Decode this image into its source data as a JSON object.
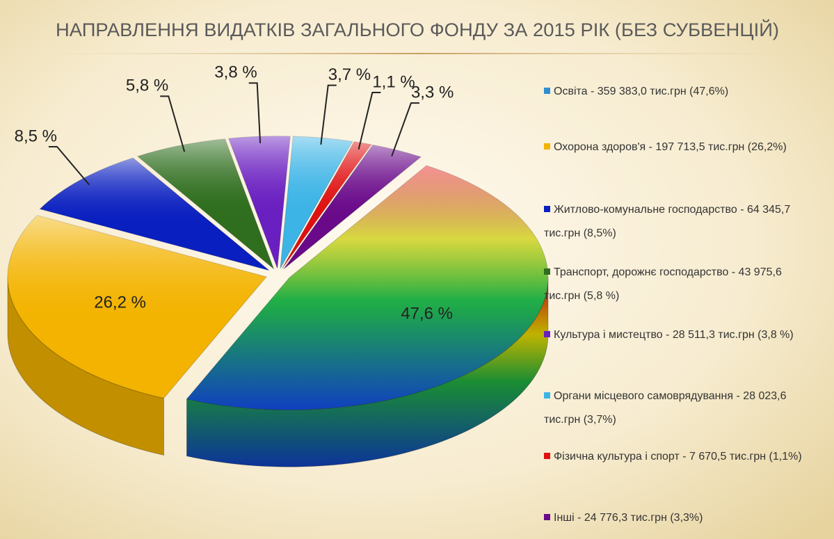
{
  "chart_data": {
    "type": "pie",
    "title": "НАПРАВЛЕННЯ ВИДАТКІВ ЗАГАЛЬНОГО ФОНДУ ЗА 2015 РІК (БЕЗ СУБВЕНЦІЙ)",
    "categories": [
      "Освіта - 359 383,0 тис.грн (47,6%)",
      "Охорона здоров'я - 197 713,5 тис.грн (26,2%)",
      "Житлово-комунальне господарство - 64 345,7 тис.грн (8,5%)",
      "Транспорт, дорожнє господарство - 43 975,6 тис.грн (5,8 %)",
      "Культура і мистецтво - 28 511,3 тис.грн (3,8 %)",
      "Органи місцевого самоврядування - 28 023,6 тис.грн (3,7%)",
      "Фізична культура і спорт - 7 670,5 тис.грн (1,1%)",
      "Інші - 24 776,3 тис.грн (3,3%)"
    ],
    "values": [
      47.6,
      26.2,
      8.5,
      5.8,
      3.8,
      3.7,
      1.1,
      3.3
    ],
    "value_labels": [
      "47,6 %",
      "26,2 %",
      "8,5 %",
      "5,8 %",
      "3,8 %",
      "3,7 %",
      "1,1 %",
      "3,3 %"
    ],
    "colors": [
      "#2f8fd0",
      "#f3b300",
      "#0a1fc0",
      "#2f6e1e",
      "#6a1fc0",
      "#3cb4e6",
      "#e01010",
      "#6a0a8a"
    ]
  }
}
